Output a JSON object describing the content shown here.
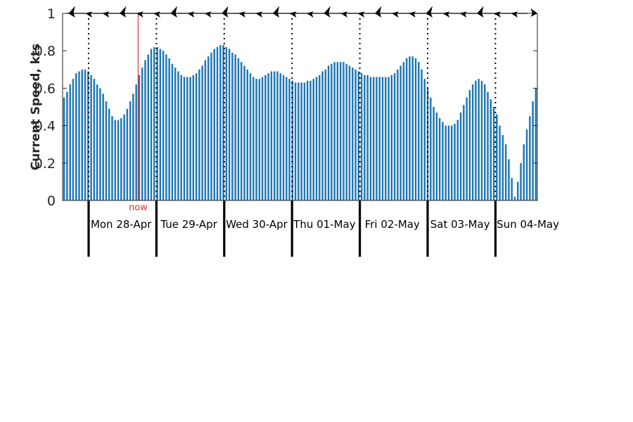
{
  "chart_data": {
    "type": "bar",
    "ylabel": "Current Speed, kts",
    "ylim": [
      0,
      1
    ],
    "yticks": [
      0,
      0.2,
      0.4,
      0.6,
      0.8,
      1
    ],
    "ytick_labels": [
      "0",
      "0.2",
      "0.4",
      "0.6",
      "0.8",
      "1"
    ],
    "days": [
      "Mon 28-Apr",
      "Tue 29-Apr",
      "Wed 30-Apr",
      "Thu 01-May",
      "Fri 02-May",
      "Sat 03-May",
      "Sun 04-May"
    ],
    "x_domain_days": [
      -0.37,
      6.62
    ],
    "now_marker": {
      "label": "now",
      "day_offset": 0.73,
      "color": "#e8322b"
    },
    "bar_color": "#1f77b4",
    "grid": false,
    "direction_arrows": {
      "count": 28,
      "heading": "mostly west/southwest, final arrow east"
    },
    "values": [
      0.55,
      0.58,
      0.62,
      0.65,
      0.68,
      0.69,
      0.7,
      0.7,
      0.69,
      0.67,
      0.65,
      0.62,
      0.6,
      0.57,
      0.53,
      0.49,
      0.45,
      0.43,
      0.43,
      0.44,
      0.46,
      0.49,
      0.53,
      0.57,
      0.62,
      0.67,
      0.71,
      0.75,
      0.78,
      0.81,
      0.82,
      0.82,
      0.81,
      0.8,
      0.78,
      0.76,
      0.73,
      0.71,
      0.69,
      0.67,
      0.66,
      0.66,
      0.66,
      0.67,
      0.68,
      0.7,
      0.72,
      0.75,
      0.77,
      0.79,
      0.81,
      0.82,
      0.83,
      0.83,
      0.82,
      0.81,
      0.79,
      0.78,
      0.76,
      0.74,
      0.72,
      0.7,
      0.68,
      0.66,
      0.65,
      0.65,
      0.66,
      0.67,
      0.68,
      0.69,
      0.69,
      0.69,
      0.68,
      0.67,
      0.66,
      0.65,
      0.64,
      0.63,
      0.63,
      0.63,
      0.63,
      0.64,
      0.64,
      0.65,
      0.66,
      0.67,
      0.69,
      0.7,
      0.72,
      0.73,
      0.74,
      0.74,
      0.74,
      0.74,
      0.73,
      0.72,
      0.71,
      0.7,
      0.69,
      0.68,
      0.67,
      0.67,
      0.66,
      0.66,
      0.66,
      0.66,
      0.66,
      0.66,
      0.66,
      0.67,
      0.68,
      0.7,
      0.72,
      0.74,
      0.76,
      0.77,
      0.77,
      0.76,
      0.74,
      0.7,
      0.65,
      0.6,
      0.55,
      0.5,
      0.47,
      0.44,
      0.42,
      0.4,
      0.4,
      0.4,
      0.41,
      0.43,
      0.47,
      0.51,
      0.55,
      0.59,
      0.62,
      0.64,
      0.65,
      0.64,
      0.62,
      0.58,
      0.54,
      0.5,
      0.46,
      0.4,
      0.35,
      0.3,
      0.22,
      0.12,
      0.02,
      0.1,
      0.2,
      0.3,
      0.38,
      0.45,
      0.53,
      0.6
    ]
  }
}
